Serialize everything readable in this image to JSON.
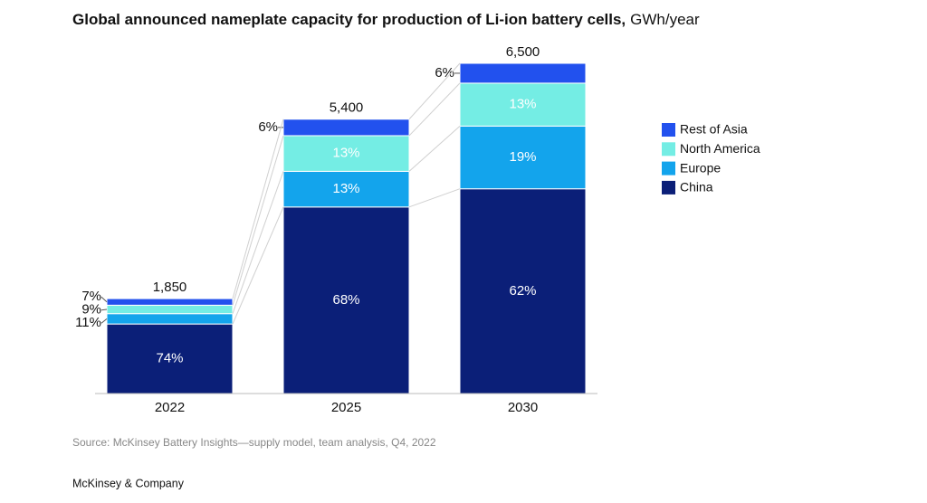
{
  "chart_data": {
    "type": "stacked-bar",
    "title": "Global announced nameplate capacity for production of Li-ion battery cells,",
    "unit": "GWh/year",
    "categories": [
      "2022",
      "2025",
      "2030"
    ],
    "totals": {
      "values": [
        1850,
        5400,
        6500
      ],
      "value_labels": [
        "1,850",
        "5,400",
        "6,500"
      ]
    },
    "series": [
      {
        "name": "China",
        "color": "#0b1f78",
        "values": [
          74,
          68,
          62
        ],
        "value_labels": [
          "74%",
          "68%",
          "62%"
        ]
      },
      {
        "name": "Europe",
        "color": "#13a4ec",
        "values": [
          11,
          13,
          19
        ],
        "value_labels": [
          "11%",
          "13%",
          "19%"
        ]
      },
      {
        "name": "North America",
        "color": "#74ede4",
        "values": [
          9,
          13,
          13
        ],
        "value_labels": [
          "9%",
          "13%",
          "13%"
        ]
      },
      {
        "name": "Rest of Asia",
        "color": "#2251ee",
        "values": [
          7,
          6,
          6
        ],
        "value_labels": [
          "7%",
          "6%",
          "6%"
        ]
      }
    ],
    "source": "Source: McKinsey Battery Insights—supply model, team analysis, Q4, 2022",
    "footer": "McKinsey & Company"
  }
}
